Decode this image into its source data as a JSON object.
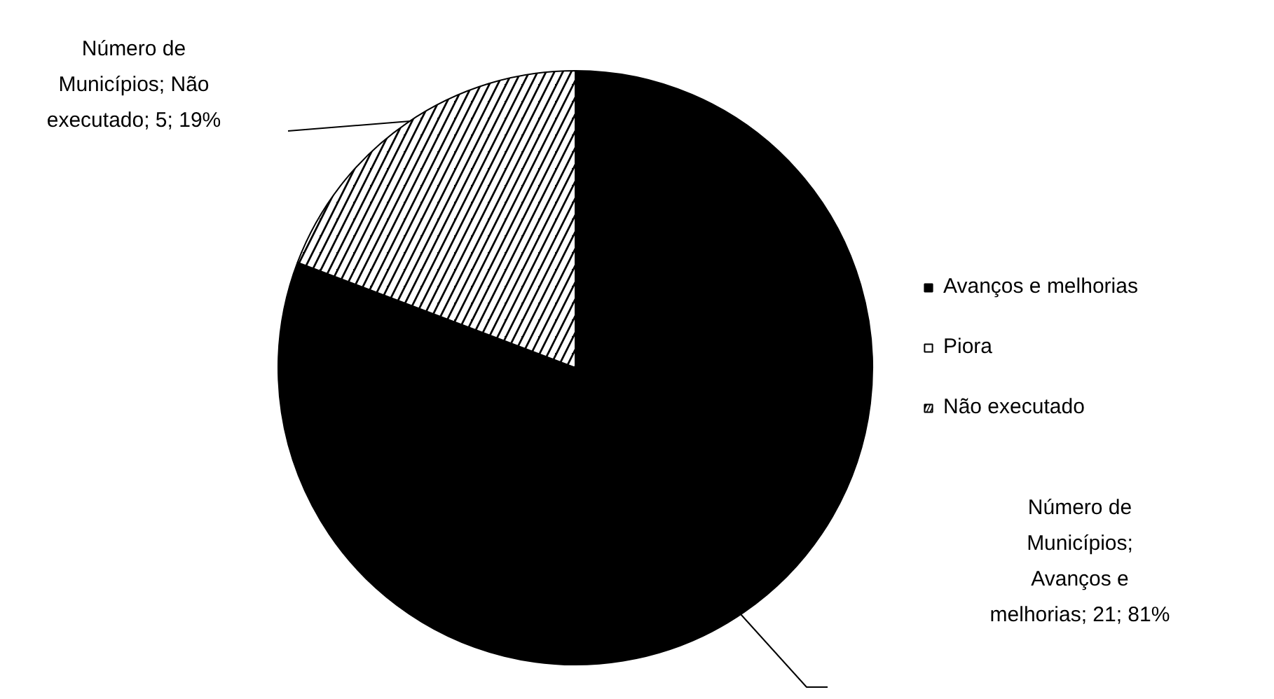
{
  "chart_data": {
    "type": "pie",
    "categories": [
      "Avanços e melhorias",
      "Piora",
      "Não executado"
    ],
    "values": [
      21,
      0,
      5
    ],
    "colors": [
      "#000000",
      "#ffffff",
      "#000000"
    ],
    "value_labels": [
      "Número de Municípios; Avanços e melhorias; 21; 81%",
      null,
      "Número de Municípios; Não executado; 5; 19%"
    ],
    "legend": "right"
  }
}
